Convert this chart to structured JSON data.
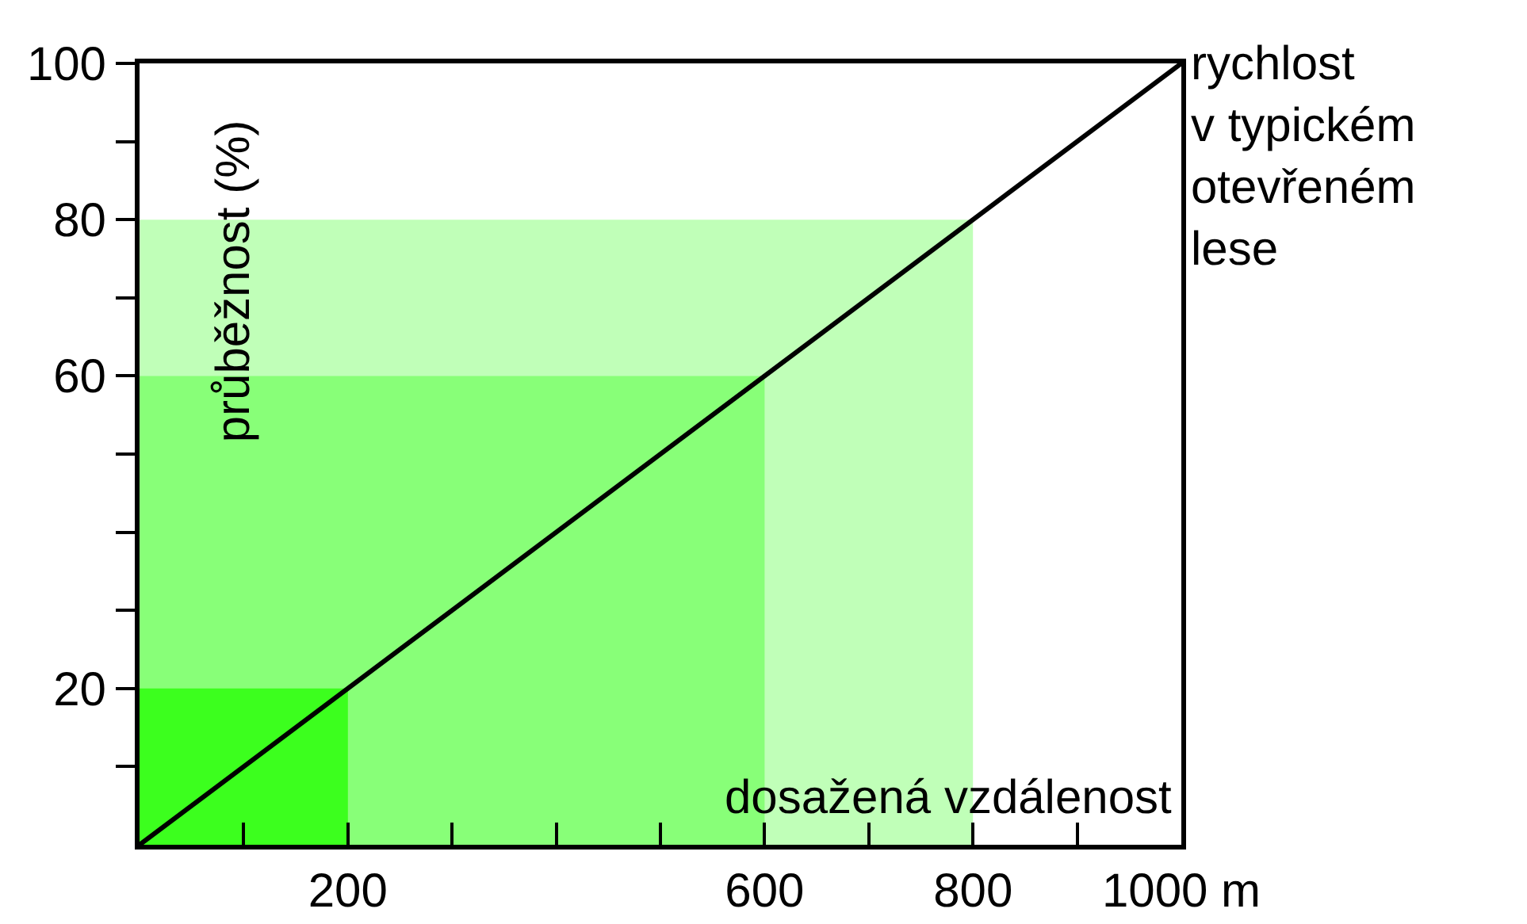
{
  "chart_data": {
    "type": "line",
    "xlabel": "dosažená vzdálenost",
    "ylabel": "průběžnost (%)",
    "xlim": [
      0,
      1000
    ],
    "ylim": [
      0,
      100
    ],
    "xticks": [
      {
        "value": 100,
        "label": null
      },
      200,
      {
        "value": 300,
        "label": null
      },
      {
        "value": 400,
        "label": null
      },
      {
        "value": 500,
        "label": null
      },
      600,
      {
        "value": 700,
        "label": null
      },
      800,
      {
        "value": 900,
        "label": null
      },
      {
        "value": 1000,
        "label": "1000 m"
      }
    ],
    "yticks": [
      {
        "value": 10,
        "label": null
      },
      20,
      {
        "value": 30,
        "label": null
      },
      {
        "value": 40,
        "label": null
      },
      {
        "value": 50,
        "label": null
      },
      60,
      {
        "value": 70,
        "label": null
      },
      80,
      {
        "value": 90,
        "label": null
      },
      100
    ],
    "series": [
      {
        "type": "area",
        "color": "#c0ffb8",
        "x": [
          0,
          800
        ],
        "values": [
          80,
          80
        ]
      },
      {
        "type": "area",
        "color": "#88ff78",
        "x": [
          0,
          600
        ],
        "values": [
          60,
          60
        ]
      },
      {
        "type": "area",
        "color": "#3cff1e",
        "x": [
          0,
          200
        ],
        "values": [
          20,
          20
        ]
      },
      {
        "name": "rychlost v typickém otevřeném lese",
        "color": "#000000",
        "x": [
          0,
          1000
        ],
        "values": [
          0,
          100
        ]
      }
    ],
    "grid": false,
    "legend": false,
    "marker": "none",
    "line_style": "solid"
  }
}
